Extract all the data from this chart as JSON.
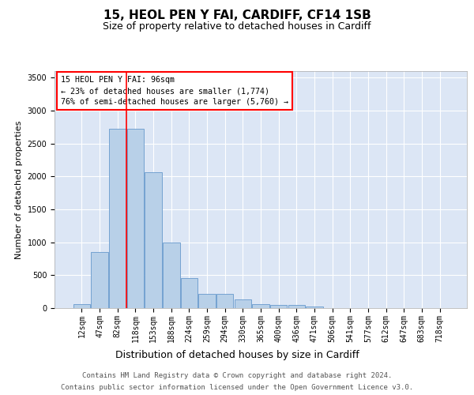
{
  "title1": "15, HEOL PEN Y FAI, CARDIFF, CF14 1SB",
  "title2": "Size of property relative to detached houses in Cardiff",
  "xlabel": "Distribution of detached houses by size in Cardiff",
  "ylabel": "Number of detached properties",
  "categories": [
    "12sqm",
    "47sqm",
    "82sqm",
    "118sqm",
    "153sqm",
    "188sqm",
    "224sqm",
    "259sqm",
    "294sqm",
    "330sqm",
    "365sqm",
    "400sqm",
    "436sqm",
    "471sqm",
    "506sqm",
    "541sqm",
    "577sqm",
    "612sqm",
    "647sqm",
    "683sqm",
    "718sqm"
  ],
  "values": [
    60,
    850,
    2720,
    2720,
    2060,
    1000,
    460,
    220,
    220,
    130,
    60,
    50,
    50,
    30,
    5,
    5,
    0,
    0,
    0,
    0,
    0
  ],
  "bar_color": "#b8d0e8",
  "bar_edge_color": "#6699cc",
  "red_line_x": 2.5,
  "annotation_box_text": "15 HEOL PEN Y FAI: 96sqm\n← 23% of detached houses are smaller (1,774)\n76% of semi-detached houses are larger (5,760) →",
  "ylim": [
    0,
    3600
  ],
  "yticks": [
    0,
    500,
    1000,
    1500,
    2000,
    2500,
    3000,
    3500
  ],
  "background_color": "#dce6f5",
  "footer_line1": "Contains HM Land Registry data © Crown copyright and database right 2024.",
  "footer_line2": "Contains public sector information licensed under the Open Government Licence v3.0.",
  "title1_fontsize": 11,
  "title2_fontsize": 9,
  "xlabel_fontsize": 9,
  "ylabel_fontsize": 8,
  "tick_fontsize": 7,
  "footer_fontsize": 6.5
}
